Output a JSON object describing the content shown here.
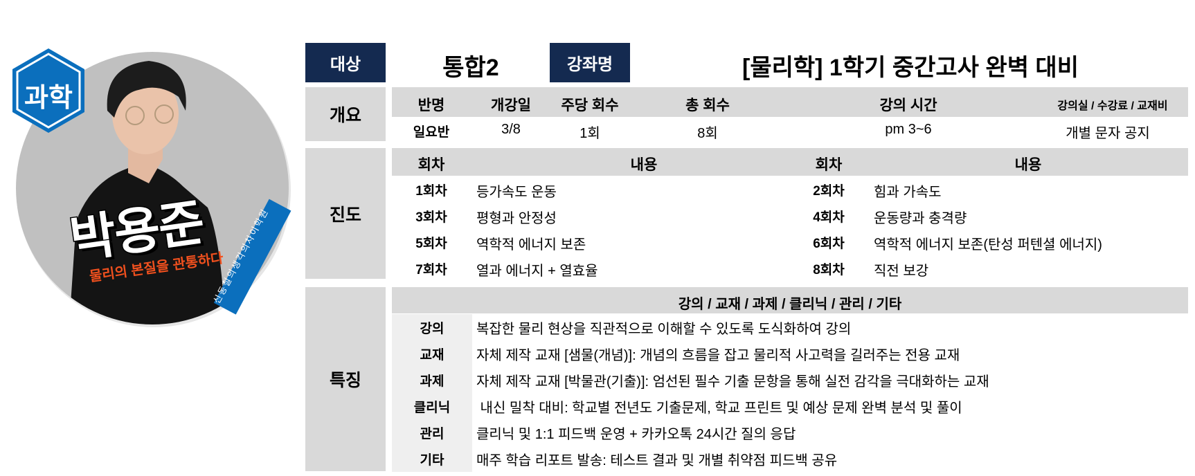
{
  "profile": {
    "subject_badge": "과학",
    "teacher_name": "박용준",
    "slogan": "물리의 본질을 관통하다",
    "academy_ribbon": "신동철의생각의차이학원",
    "colors": {
      "badge": "#0b6fbd",
      "slogan": "#f0501e",
      "ribbon": "#0b6fbd"
    }
  },
  "header": {
    "target_label": "대상",
    "target_value": "통합2",
    "course_label": "강좌명",
    "course_value": "[물리학] 1학기 중간고사 완벽 대비"
  },
  "overview": {
    "label": "개요",
    "columns": [
      "반명",
      "개강일",
      "주당 회수",
      "총 회수",
      "강의 시간",
      "강의실 / 수강료 / 교재비"
    ],
    "values": [
      "일요반",
      "3/8",
      "1회",
      "8회",
      "pm 3~6",
      "개별 문자 공지"
    ]
  },
  "progress": {
    "label": "진도",
    "col_session": "회차",
    "col_content": "내용",
    "left": [
      {
        "session": "1회차",
        "content": "등가속도 운동"
      },
      {
        "session": "3회차",
        "content": "평형과 안정성"
      },
      {
        "session": "5회차",
        "content": "역학적 에너지 보존"
      },
      {
        "session": "7회차",
        "content": "열과 에너지 + 열효율"
      }
    ],
    "right": [
      {
        "session": "2회차",
        "content": "힘과 가속도"
      },
      {
        "session": "4회차",
        "content": "운동량과 충격량"
      },
      {
        "session": "6회차",
        "content": "역학적 에너지 보존(탄성 퍼텐셜 에너지)"
      },
      {
        "session": "8회차",
        "content": "직전 보강"
      }
    ]
  },
  "features": {
    "label": "특징",
    "header": "강의 / 교재 / 과제 / 클리닉 / 관리 / 기타",
    "rows": [
      {
        "key": "강의",
        "value": "복잡한 물리 현상을 직관적으로 이해할 수 있도록 도식화하여 강의"
      },
      {
        "key": "교재",
        "value": "자체 제작 교재 [샘물(개념)]: 개념의 흐름을 잡고 물리적 사고력을 길러주는 전용 교재"
      },
      {
        "key": "과제",
        "value": "자체 제작 교재 [박물관(기출)]: 엄선된 필수 기출 문항을 통해 실전 감각을 극대화하는 교재"
      },
      {
        "key": "클리닉",
        "value": " 내신 밀착 대비: 학교별 전년도 기출문제, 학교 프린트 및 예상 문제 완벽 분석 및 풀이"
      },
      {
        "key": "관리",
        "value": "클리닉 및 1:1 피드백 운영 + 카카오톡 24시간 질의 응답"
      },
      {
        "key": "기타",
        "value": "매주 학습 리포트 발송: 테스트 결과 및 개별 취약점 피드백 공유"
      }
    ]
  }
}
